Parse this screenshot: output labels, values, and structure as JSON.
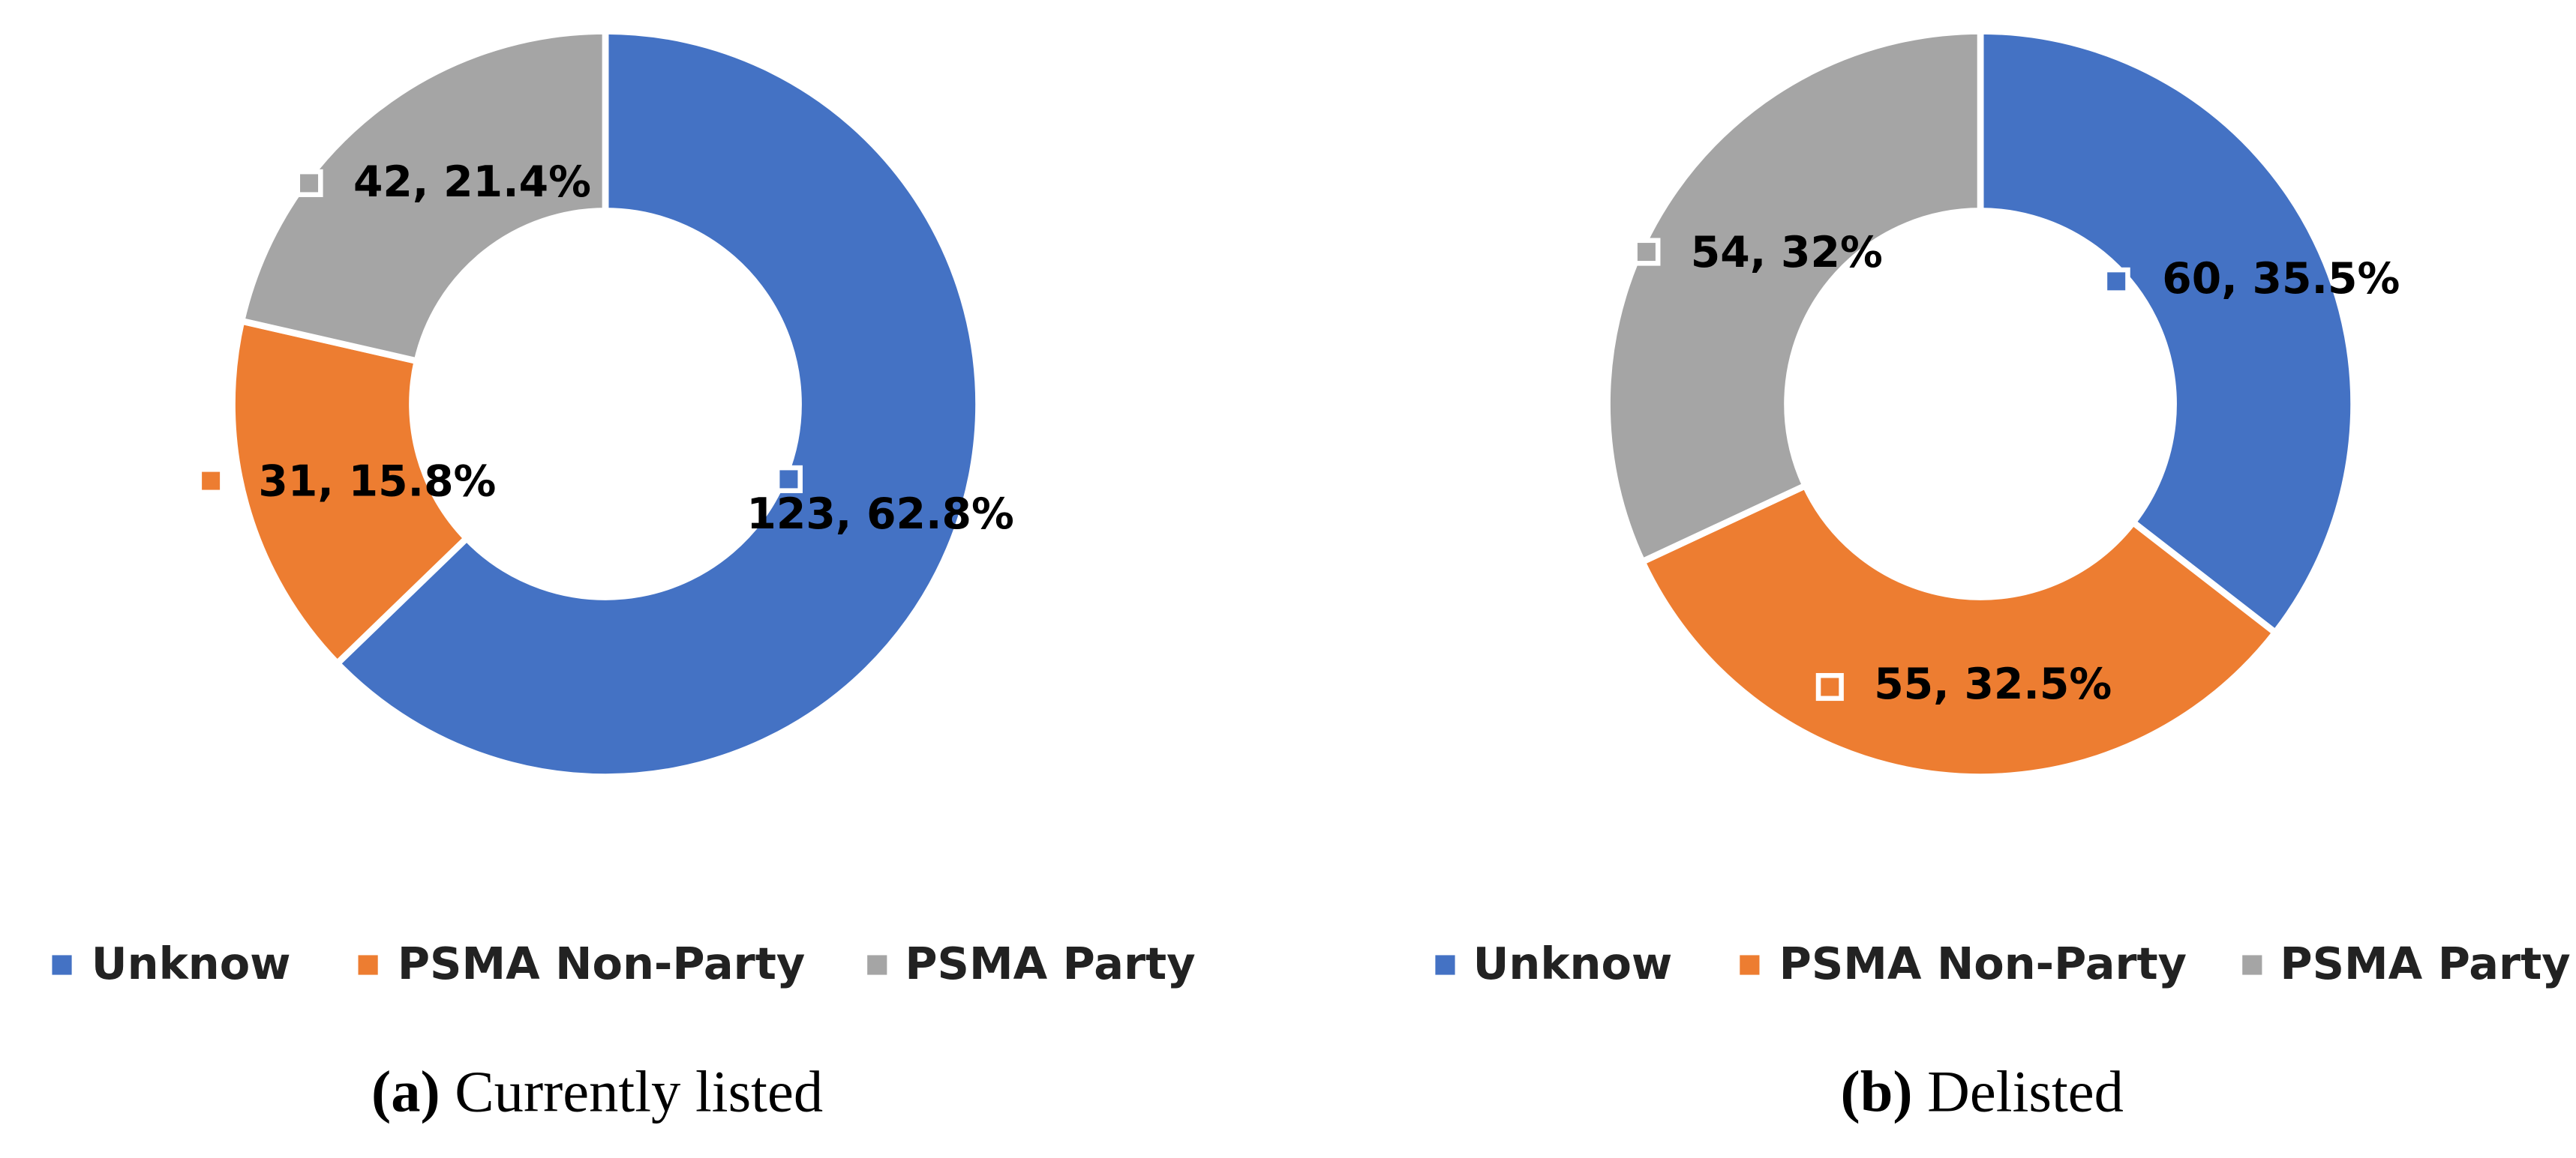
{
  "chart_data": [
    {
      "type": "donut",
      "caption_label": "(a)",
      "caption": "Currently listed",
      "categories": [
        "Unknow",
        "PSMA Non-Party",
        "PSMA Party"
      ],
      "colors": [
        "#4472c4",
        "#ed7d31",
        "#a5a5a5"
      ],
      "values": [
        123,
        31,
        42
      ],
      "value_labels": [
        "123, 62.8%",
        "31, 15.8%",
        "42, 21.4%"
      ]
    },
    {
      "type": "donut",
      "caption_label": "(b)",
      "caption": "Delisted",
      "categories": [
        "Unknow",
        "PSMA Non-Party",
        "PSMA Party"
      ],
      "colors": [
        "#4472c4",
        "#ed7d31",
        "#a5a5a5"
      ],
      "values": [
        60,
        55,
        54
      ],
      "value_labels": [
        "60, 35.5%",
        "55, 32.5%",
        "54, 32%"
      ]
    }
  ]
}
